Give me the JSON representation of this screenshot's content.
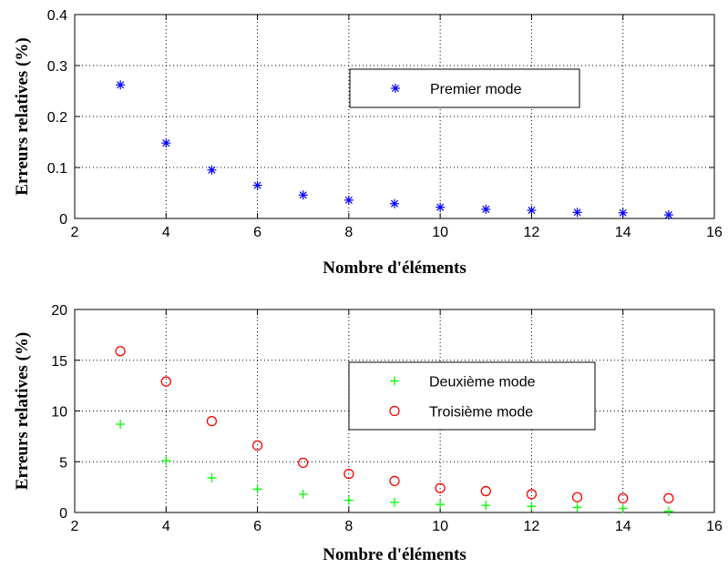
{
  "chart_data": [
    {
      "type": "scatter",
      "xlabel": "Nombre d'éléments",
      "ylabel": "Erreurs relatives (%)",
      "xlim": [
        2,
        16
      ],
      "ylim": [
        0,
        0.4
      ],
      "xticks": [
        2,
        4,
        6,
        8,
        10,
        12,
        14,
        16
      ],
      "yticks": [
        0,
        0.1,
        0.2,
        0.3,
        0.4
      ],
      "grid": true,
      "legend_position": "upper-right",
      "series": [
        {
          "name": "Premier mode",
          "marker": "asterisk",
          "color": "#0000ff",
          "x": [
            3,
            4,
            5,
            6,
            7,
            8,
            9,
            10,
            11,
            12,
            13,
            14,
            15
          ],
          "y": [
            0.262,
            0.148,
            0.095,
            0.065,
            0.046,
            0.036,
            0.029,
            0.022,
            0.018,
            0.016,
            0.012,
            0.011,
            0.007
          ]
        }
      ]
    },
    {
      "type": "scatter",
      "xlabel": "Nombre d'éléments",
      "ylabel": "Erreurs relatives (%)",
      "xlim": [
        2,
        16
      ],
      "ylim": [
        0,
        20
      ],
      "xticks": [
        2,
        4,
        6,
        8,
        10,
        12,
        14,
        16
      ],
      "yticks": [
        0,
        5,
        10,
        15,
        20
      ],
      "grid": true,
      "legend_position": "upper-right",
      "series": [
        {
          "name": "Deuxième mode",
          "marker": "plus",
          "color": "#00ff00",
          "x": [
            3,
            4,
            5,
            6,
            7,
            8,
            9,
            10,
            11,
            12,
            13,
            14,
            15
          ],
          "y": [
            8.7,
            5.1,
            3.4,
            2.3,
            1.8,
            1.2,
            1.0,
            0.8,
            0.7,
            0.6,
            0.5,
            0.4,
            0.1
          ]
        },
        {
          "name": "Troisième mode",
          "marker": "circle",
          "color": "#ff0000",
          "x": [
            3,
            4,
            5,
            6,
            7,
            8,
            9,
            10,
            11,
            12,
            13,
            14,
            15
          ],
          "y": [
            15.9,
            12.9,
            9.0,
            6.6,
            4.9,
            3.8,
            3.1,
            2.4,
            2.1,
            1.8,
            1.5,
            1.4,
            1.4
          ]
        }
      ]
    }
  ]
}
